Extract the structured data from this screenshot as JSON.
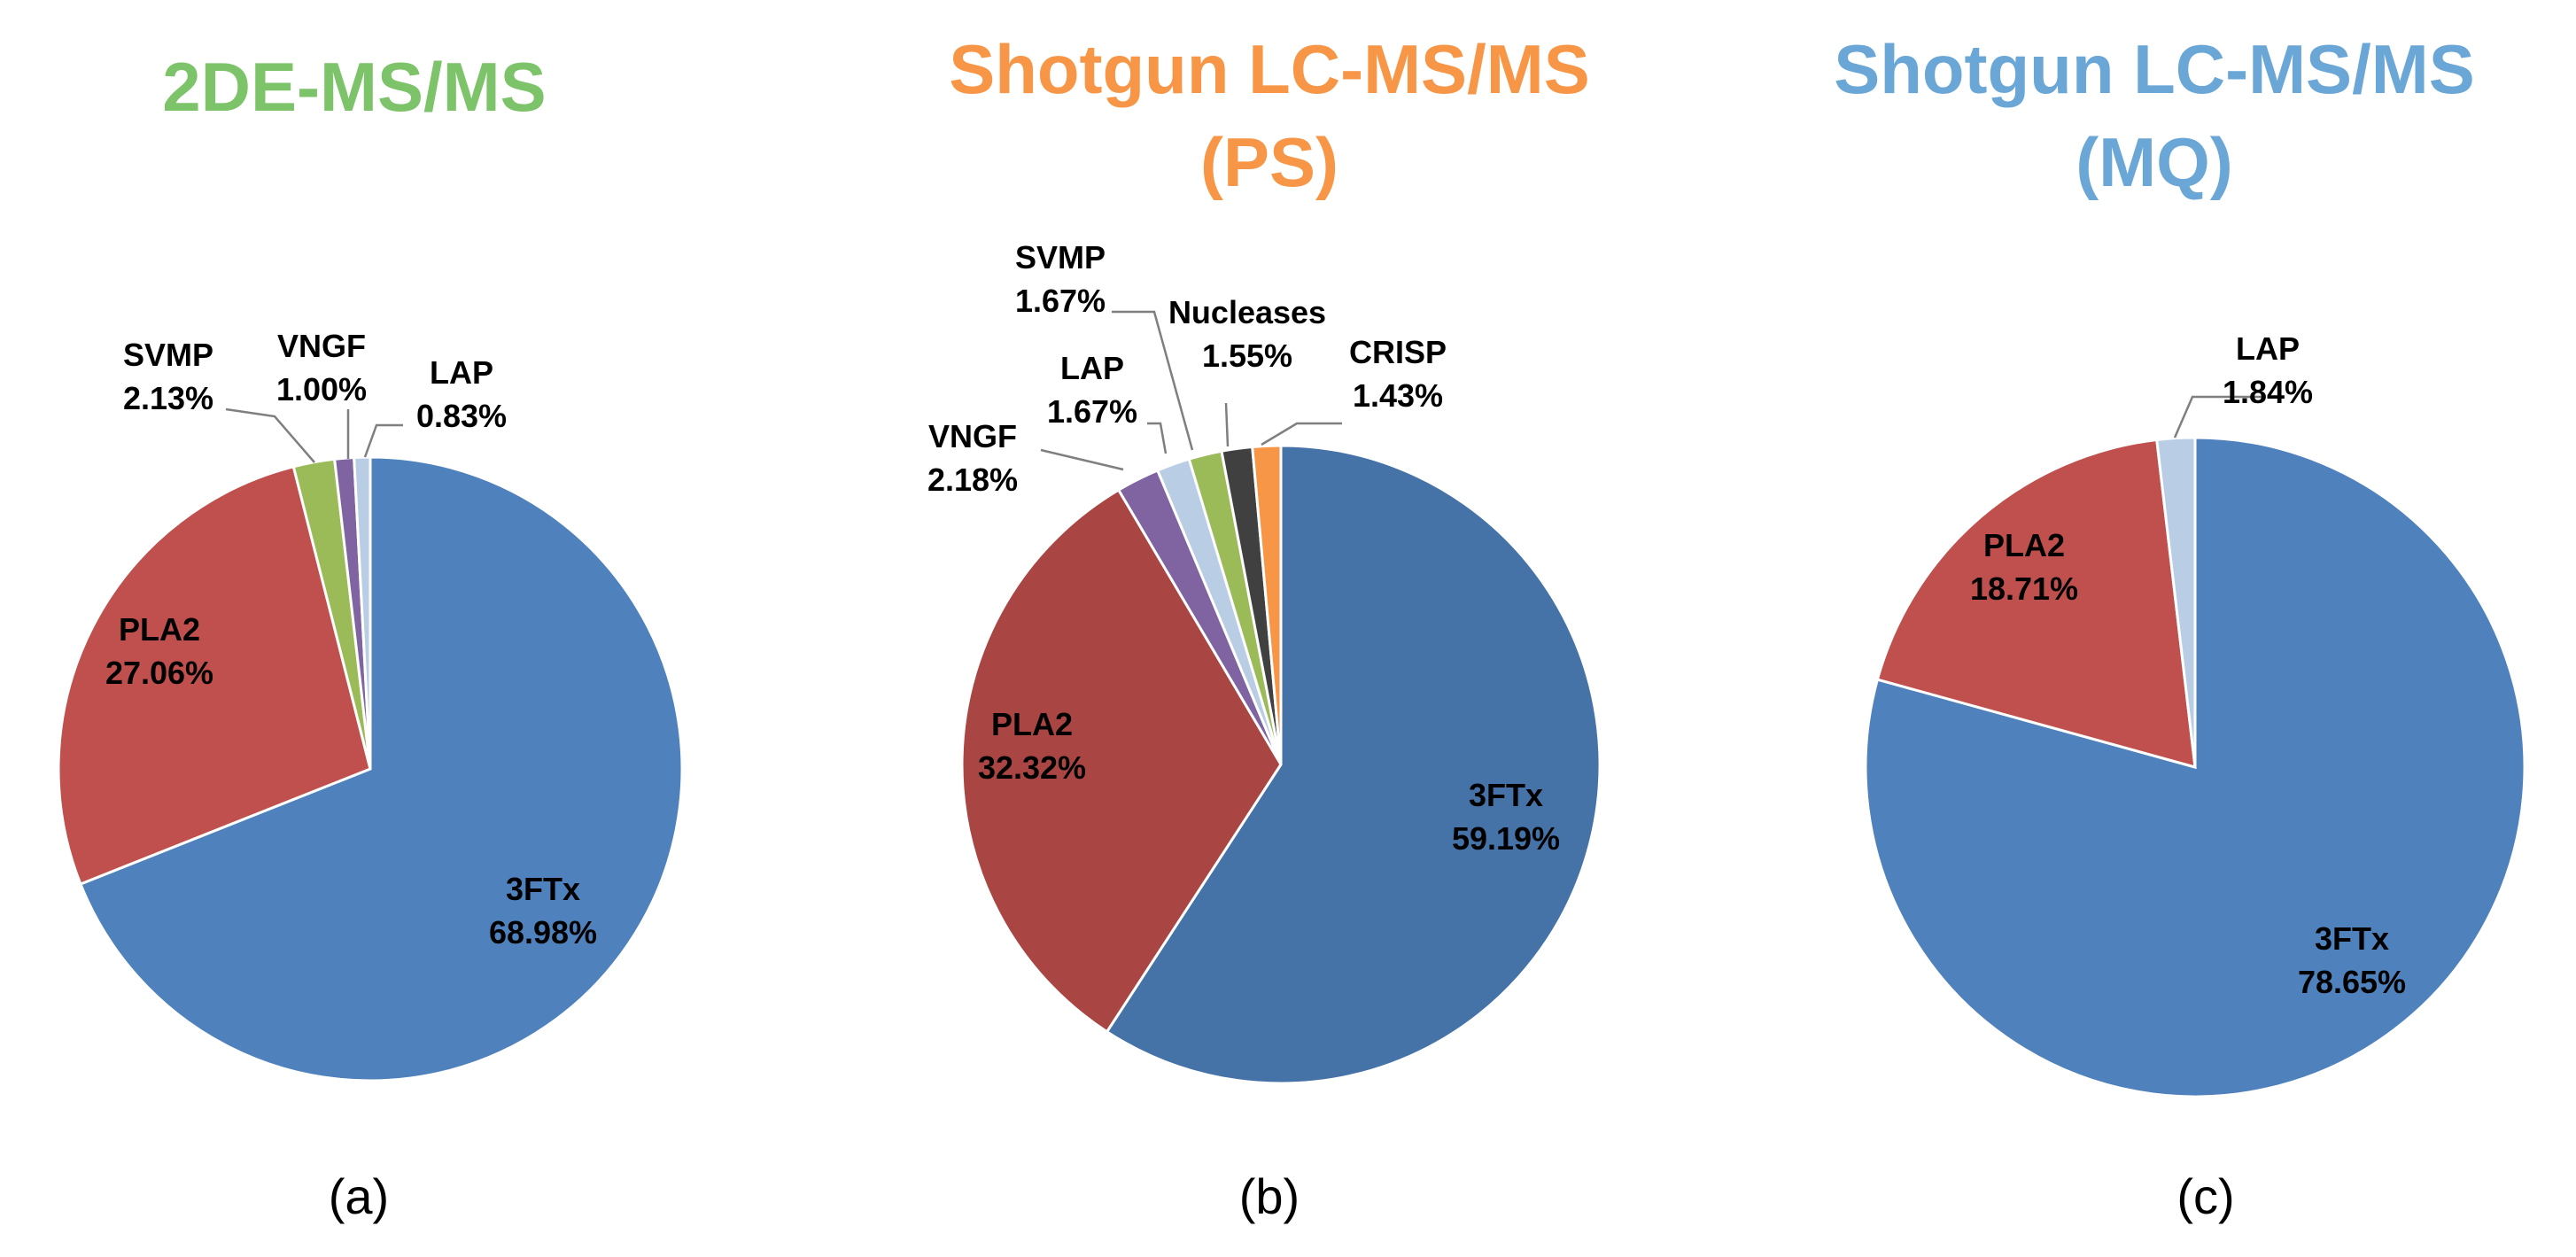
{
  "figure_labels": [
    "(a)",
    "(b)",
    "(c)"
  ],
  "chart_data": [
    {
      "type": "pie",
      "title": "2DE-MS/MS",
      "title_color": "#7dc36a",
      "panel_label": "(a)",
      "slices": [
        {
          "name": "3FTx",
          "value": 68.98,
          "label": "68.98%",
          "color": "#4f81bd"
        },
        {
          "name": "PLA2",
          "value": 27.06,
          "label": "27.06%",
          "color": "#c0504d"
        },
        {
          "name": "SVMP",
          "value": 2.13,
          "label": "2.13%",
          "color": "#9bbb59"
        },
        {
          "name": "VNGF",
          "value": 1.0,
          "label": "1.00%",
          "color": "#8064a2"
        },
        {
          "name": "LAP",
          "value": 0.83,
          "label": "0.83%",
          "color": "#b9cde5"
        }
      ]
    },
    {
      "type": "pie",
      "title": "Shotgun LC-MS/MS",
      "subtitle": "(PS)",
      "title_color": "#f79646",
      "panel_label": "(b)",
      "slices": [
        {
          "name": "3FTx",
          "value": 59.19,
          "label": "59.19%",
          "color": "#4572a7"
        },
        {
          "name": "PLA2",
          "value": 32.32,
          "label": "32.32%",
          "color": "#a94543"
        },
        {
          "name": "VNGF",
          "value": 2.18,
          "label": "2.18%",
          "color": "#8064a2"
        },
        {
          "name": "LAP",
          "value": 1.67,
          "label": "1.67%",
          "color": "#b9cde5"
        },
        {
          "name": "SVMP",
          "value": 1.67,
          "label": "1.67%",
          "color": "#9bbb59"
        },
        {
          "name": "Nucleases",
          "value": 1.55,
          "label": "1.55%",
          "color": "#404040"
        },
        {
          "name": "CRISP",
          "value": 1.43,
          "label": "1.43%",
          "color": "#f79646"
        }
      ]
    },
    {
      "type": "pie",
      "title": "Shotgun LC-MS/MS",
      "subtitle": "(MQ)",
      "title_color": "#6aa7d6",
      "panel_label": "(c)",
      "slices": [
        {
          "name": "3FTx",
          "value": 78.65,
          "label": "78.65%",
          "color": "#4f81bd"
        },
        {
          "name": "PLA2",
          "value": 18.71,
          "label": "18.71%",
          "color": "#c0504d"
        },
        {
          "name": "LAP",
          "value": 1.84,
          "label": "1.84%",
          "color": "#b9cde5"
        }
      ]
    }
  ]
}
